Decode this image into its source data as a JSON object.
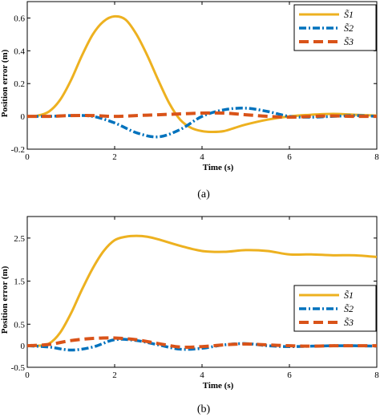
{
  "chart_data": [
    {
      "type": "line",
      "panel": "a",
      "caption": "(a)",
      "xlabel": "Time (s)",
      "ylabel": "Position error (m)",
      "xlim": [
        0,
        8
      ],
      "ylim": [
        -0.2,
        0.7
      ],
      "xticks": [
        0,
        2,
        4,
        6,
        8
      ],
      "xtick_labels": [
        "0",
        "2",
        "4",
        "6",
        "8"
      ],
      "yticks": [
        -0.2,
        0,
        0.2,
        0.4,
        0.6
      ],
      "ytick_labels": [
        "-0.2",
        "0",
        "0.2",
        "0.4",
        "0.6"
      ],
      "grid": false,
      "legend_position": "top-right",
      "series": [
        {
          "name": "S̃1",
          "color": "#EDB120",
          "style": "solid",
          "x": [
            0,
            0.25,
            0.5,
            0.75,
            1.0,
            1.25,
            1.5,
            1.75,
            2.0,
            2.25,
            2.5,
            2.75,
            3.0,
            3.25,
            3.5,
            3.75,
            4.0,
            4.25,
            4.5,
            4.75,
            5.0,
            5.5,
            6.0,
            6.5,
            7.0,
            7.5,
            8.0
          ],
          "y": [
            0,
            0.005,
            0.03,
            0.1,
            0.22,
            0.37,
            0.5,
            0.58,
            0.61,
            0.59,
            0.5,
            0.37,
            0.22,
            0.08,
            -0.02,
            -0.07,
            -0.09,
            -0.095,
            -0.09,
            -0.07,
            -0.05,
            -0.02,
            0.0,
            0.01,
            0.015,
            0.01,
            0.005
          ]
        },
        {
          "name": "S̃2",
          "color": "#0072BD",
          "style": "dashdot",
          "x": [
            0,
            0.5,
            1.0,
            1.5,
            2.0,
            2.5,
            3.0,
            3.5,
            4.0,
            4.5,
            5.0,
            5.5,
            6.0,
            6.5,
            7.0,
            7.5,
            8.0
          ],
          "y": [
            0,
            0.0,
            0.005,
            0.0,
            -0.04,
            -0.1,
            -0.125,
            -0.08,
            0.0,
            0.04,
            0.05,
            0.03,
            0.0,
            -0.005,
            0.0,
            0.005,
            0.0
          ]
        },
        {
          "name": "S̃3",
          "color": "#D95319",
          "style": "dashed",
          "x": [
            0,
            0.5,
            1.0,
            1.5,
            2.0,
            2.5,
            3.0,
            3.5,
            4.0,
            4.5,
            5.0,
            5.5,
            6.0,
            6.5,
            7.0,
            7.5,
            8.0
          ],
          "y": [
            0,
            0.0,
            0.005,
            0.005,
            0.0,
            0.005,
            0.01,
            0.015,
            0.02,
            0.02,
            0.01,
            0.0,
            -0.005,
            0.0,
            0.003,
            0.0,
            0.0
          ]
        }
      ]
    },
    {
      "type": "line",
      "panel": "b",
      "caption": "(b)",
      "xlabel": "Time (s)",
      "ylabel": "Position error (m)",
      "xlim": [
        0,
        8
      ],
      "ylim": [
        -0.5,
        3.0
      ],
      "xticks": [
        0,
        2,
        4,
        6,
        8
      ],
      "xtick_labels": [
        "0",
        "2",
        "4",
        "6",
        "8"
      ],
      "yticks": [
        -0.5,
        0,
        0.5,
        1.5,
        2.5
      ],
      "ytick_labels": [
        "-0.5",
        "0",
        "0.5",
        "1.5",
        "2.5"
      ],
      "grid": false,
      "legend_position": "bottom-right",
      "series": [
        {
          "name": "S̃1",
          "color": "#EDB120",
          "style": "solid",
          "x": [
            0,
            0.25,
            0.5,
            0.75,
            1.0,
            1.25,
            1.5,
            1.75,
            2.0,
            2.25,
            2.5,
            2.75,
            3.0,
            3.5,
            4.0,
            4.5,
            5.0,
            5.5,
            6.0,
            6.5,
            7.0,
            7.5,
            8.0
          ],
          "y": [
            0,
            0.0,
            0.05,
            0.3,
            0.75,
            1.3,
            1.8,
            2.2,
            2.45,
            2.53,
            2.55,
            2.53,
            2.47,
            2.32,
            2.2,
            2.18,
            2.22,
            2.2,
            2.12,
            2.12,
            2.1,
            2.1,
            2.06
          ]
        },
        {
          "name": "S̃2",
          "color": "#0072BD",
          "style": "dashdot",
          "x": [
            0,
            0.5,
            1.0,
            1.5,
            2.0,
            2.5,
            3.0,
            3.5,
            4.0,
            4.5,
            5.0,
            5.5,
            6.0,
            6.5,
            7.0,
            7.5,
            8.0
          ],
          "y": [
            0,
            -0.03,
            -0.1,
            -0.03,
            0.14,
            0.12,
            0.02,
            -0.08,
            -0.06,
            0.02,
            0.05,
            0.0,
            -0.02,
            -0.01,
            0.0,
            0.0,
            -0.01
          ]
        },
        {
          "name": "S̃3",
          "color": "#D95319",
          "style": "dashed",
          "x": [
            0,
            0.5,
            1.0,
            1.5,
            2.0,
            2.5,
            3.0,
            3.5,
            4.0,
            4.5,
            5.0,
            5.5,
            6.0,
            6.5,
            7.0,
            7.5,
            8.0
          ],
          "y": [
            0,
            0.03,
            0.12,
            0.17,
            0.18,
            0.14,
            0.05,
            -0.03,
            -0.02,
            0.02,
            0.04,
            0.02,
            0.0,
            -0.01,
            0.0,
            0.0,
            0.0
          ]
        }
      ]
    }
  ]
}
